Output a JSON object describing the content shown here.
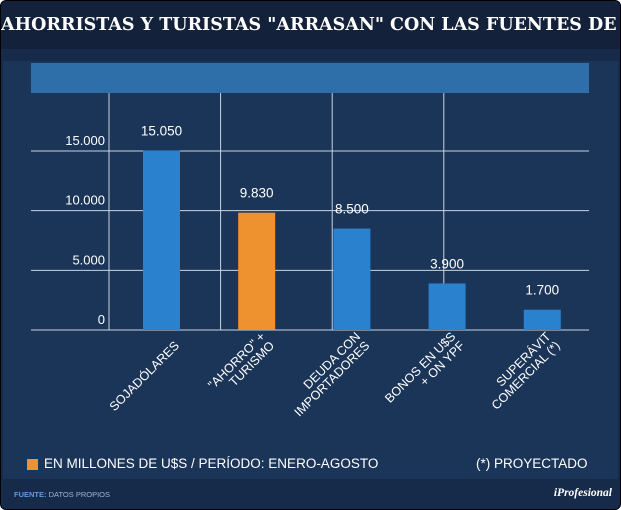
{
  "title": "AHORRISTAS Y TURISTAS \"ARRASAN\" CON LAS FUENTES DE DIVISAS",
  "colors": {
    "bar": "#2a82cf",
    "highlight": "#ee922f",
    "grid": "#c9d4e2"
  },
  "chart_data": {
    "type": "bar",
    "categories": [
      [
        "SOJADÓLARES"
      ],
      [
        "\"AHORRO\" +",
        "TURISMO"
      ],
      [
        "DEUDA CON",
        "IMPORTADORES"
      ],
      [
        "BONOS EN U$S",
        "+ ON YPF"
      ],
      [
        "SUPERÁVIT",
        "COMERCIAL (*)"
      ]
    ],
    "values": [
      15050,
      9830,
      8500,
      3900,
      1700
    ],
    "value_labels": [
      "15.050",
      "9.830",
      "8.500",
      "3.900",
      "1.700"
    ],
    "highlight_index": 1,
    "yticks": [
      0,
      5000,
      10000,
      15000
    ],
    "ytick_labels": [
      "0",
      "5.000",
      "10.000",
      "15.000"
    ],
    "ylim": [
      0,
      20000
    ],
    "ylabel": "",
    "xlabel": ""
  },
  "legend": {
    "label": "EN MILLONES DE U$S / PERÍODO: ENERO-AGOSTO"
  },
  "note": "(*) PROYECTADO",
  "source": {
    "label": "FUENTE:",
    "value": "DATOS PROPIOS"
  },
  "brand": "iProfesional"
}
